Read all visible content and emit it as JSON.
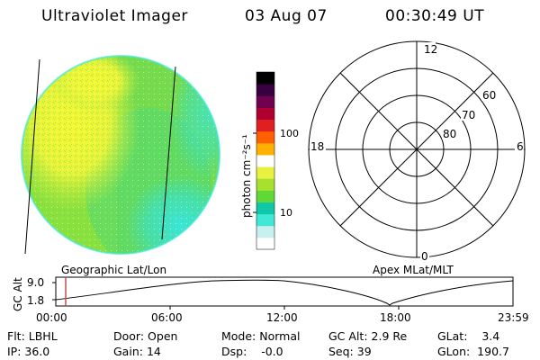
{
  "header": {
    "title": "Ultraviolet Imager",
    "date": "03 Aug 07",
    "time": "00:30:49 UT"
  },
  "colorbar": {
    "unit_label": "photon cm⁻²s⁻¹",
    "ticks": [
      "100",
      "10"
    ],
    "scale": "log",
    "colors": [
      "#ffffff",
      "#c8f0f0",
      "#40e8d8",
      "#10c8a8",
      "#60d838",
      "#a8e030",
      "#e8f040",
      "#ffffff",
      "#ffb000",
      "#ff6000",
      "#e02020",
      "#b00030",
      "#700050",
      "#380040",
      "#000000"
    ]
  },
  "image_panel": {
    "label": "Geographic Lat/Lon",
    "colors": {
      "yellow": "#f2f531",
      "yellow_green": "#c8ec3a",
      "green": "#8ce03a",
      "teal": "#30dfa0",
      "cyan": "#40e8e0"
    }
  },
  "polar_plot": {
    "label": "Apex MLat/MLT",
    "mlt_labels": [
      "12",
      "6",
      "0",
      "18"
    ],
    "lat_labels": [
      "60",
      "70",
      "80"
    ]
  },
  "altitude_strip": {
    "ylabel": "GC Alt",
    "yticks": [
      "9.0",
      "1.8"
    ],
    "xticks": [
      "00:00",
      "06:00",
      "12:00",
      "18:00",
      "23:59"
    ],
    "marker_color": "#c05050"
  },
  "info": {
    "row1": [
      {
        "label": "Flt:",
        "value": "LBHL"
      },
      {
        "label": "Door:",
        "value": "Open"
      },
      {
        "label": "Mode:",
        "value": "Normal"
      },
      {
        "label": "GC Alt:",
        "value": "2.9 Re"
      },
      {
        "label": "GLat:",
        "value": "3.4"
      }
    ],
    "row2": [
      {
        "label": "IP:",
        "value": "36.0"
      },
      {
        "label": "Gain:",
        "value": "14"
      },
      {
        "label": "Dsp:",
        "value": "-0.0"
      },
      {
        "label": "Seq:",
        "value": "39"
      },
      {
        "label": "GLon:",
        "value": "190.7"
      }
    ]
  }
}
